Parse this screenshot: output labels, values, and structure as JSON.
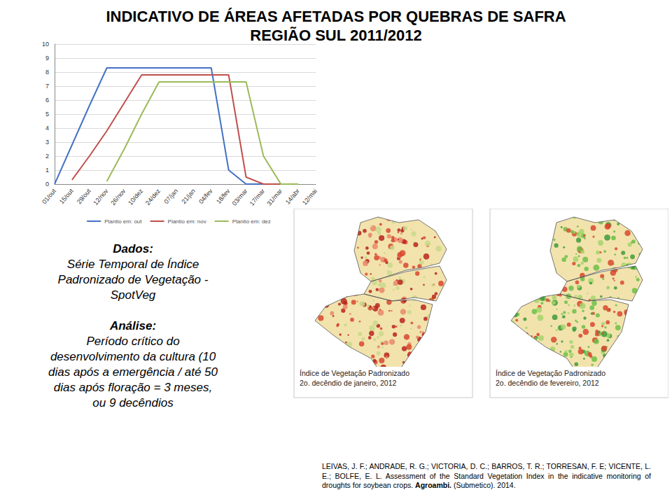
{
  "title": [
    "INDICATIVO DE ÁREAS AFETADAS POR QUEBRAS DE SAFRA",
    "REGIÃO SUL 2011/2012"
  ],
  "chart_data": {
    "type": "line",
    "categories": [
      "01/out",
      "15/out",
      "29/out",
      "12/nov",
      "26/nov",
      "10/dez",
      "24/dez",
      "07/jan",
      "21/jan",
      "04/fev",
      "18/fev",
      "03/mar",
      "17/mar",
      "31/mar",
      "14/abr",
      "12/mai"
    ],
    "series": [
      {
        "name": "Plantio em: out",
        "color": "#4472c4",
        "values": [
          0,
          2.8,
          5.6,
          8.3,
          8.3,
          8.3,
          8.3,
          8.3,
          8.3,
          8.3,
          1,
          0,
          0,
          null,
          null,
          null
        ]
      },
      {
        "name": "Plantio em: nov",
        "color": "#c0504d",
        "values": [
          null,
          0.3,
          2,
          3.8,
          5.8,
          7.8,
          7.8,
          7.8,
          7.8,
          7.8,
          7.8,
          0.5,
          0,
          0,
          null,
          null
        ]
      },
      {
        "name": "Plantio em: dez",
        "color": "#9bbb59",
        "values": [
          null,
          null,
          null,
          0.2,
          2.5,
          5,
          7.3,
          7.3,
          7.3,
          7.3,
          7.3,
          7.3,
          2,
          0,
          0,
          null
        ]
      }
    ],
    "ylim": [
      0,
      10
    ],
    "yticks": [
      0,
      1,
      2,
      3,
      4,
      5,
      6,
      7,
      8,
      9,
      10
    ],
    "grid": true,
    "legend": "bottom"
  },
  "text": {
    "dados_label": "Dados:",
    "dados_lines": [
      "Série Temporal de Índice",
      "Padronizado de Vegetação -",
      "SpotVeg"
    ],
    "analise_label": "Análise:",
    "analise_lines": [
      "Período crítico do",
      "desenvolvimento da cultura (10",
      "dias após a emergência / até 50",
      "dias após floração = 3 meses,",
      "ou 9 decêndios"
    ]
  },
  "maps": [
    {
      "title": "Índice de Vegetação Padronizado",
      "subtitle": "2o. decêndio de janeiro, 2012"
    },
    {
      "title": "Índice de Vegetação Padronizado",
      "subtitle": "2o. decêndio de fevereiro, 2012"
    }
  ],
  "citation": {
    "text": "LEIVAS, J. F.; ANDRADE, R. G.;  VICTORIA, D. C.; BARROS, T. R.; TORRESAN, F. E; VICENTE, L. E.; BOLFE, E. L. Assessment of the Standard Vegetation Index in the indicative monitoring of droughts for soybean crops.",
    "journal": "Agroambi.",
    "rest": "(Submetico). 2014."
  }
}
